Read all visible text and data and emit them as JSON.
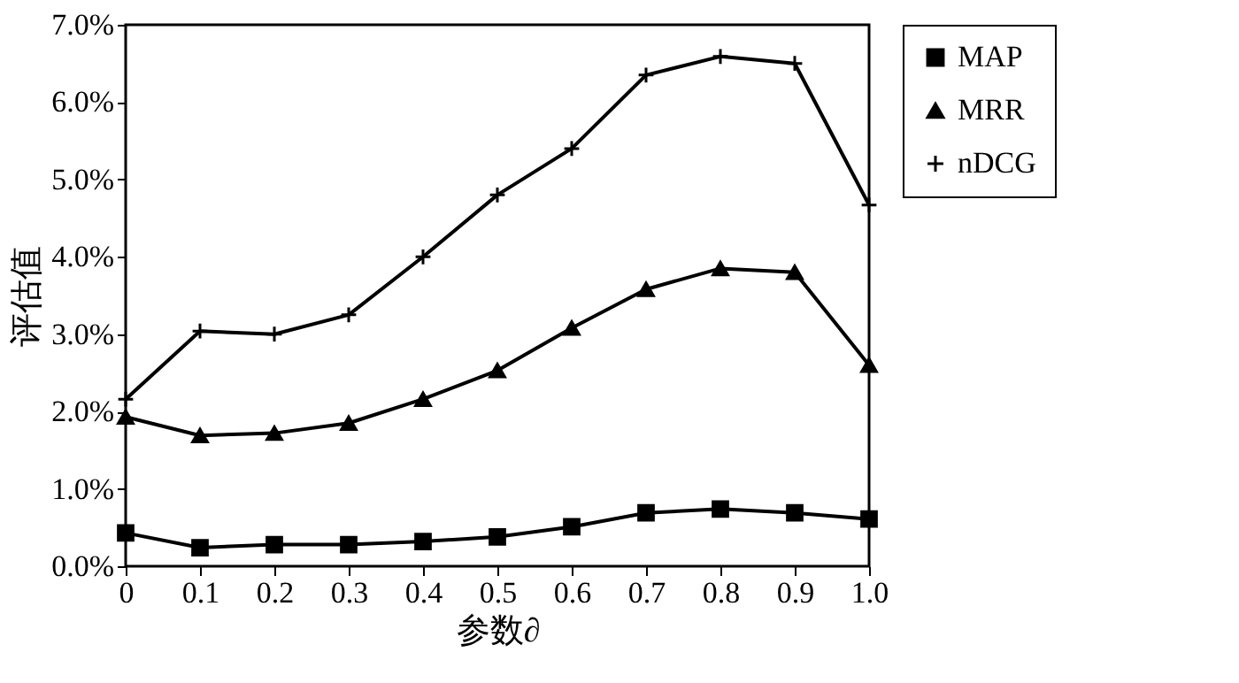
{
  "chart_data": {
    "type": "line",
    "xlabel": "参数∂",
    "ylabel": "评估值",
    "x": [
      0,
      0.1,
      0.2,
      0.3,
      0.4,
      0.5,
      0.6,
      0.7,
      0.8,
      0.9,
      1.0
    ],
    "xlim": [
      0,
      1
    ],
    "xticks": [
      {
        "value": 0,
        "label": "0"
      },
      0.1,
      0.2,
      0.3,
      0.4,
      0.5,
      0.6,
      0.7,
      0.8,
      0.9,
      {
        "value": 1,
        "label": "1.0"
      }
    ],
    "ylim": [
      0,
      7
    ],
    "yticks": [
      {
        "value": 0,
        "label": "0.0%"
      },
      {
        "value": 1,
        "label": "1.0%"
      },
      {
        "value": 2,
        "label": "2.0%"
      },
      {
        "value": 3,
        "label": "3.0%"
      },
      {
        "value": 4,
        "label": "4.0%"
      },
      {
        "value": 5,
        "label": "5.0%"
      },
      {
        "value": 6,
        "label": "6.0%"
      },
      {
        "value": 7,
        "label": "7.0%"
      }
    ],
    "grid": false,
    "legend": "right",
    "line_style": "solid",
    "series": [
      {
        "name": "MAP",
        "color": "#000000",
        "marker": "square",
        "values": [
          0.43,
          0.24,
          0.28,
          0.28,
          0.32,
          0.38,
          0.51,
          0.69,
          0.74,
          0.69,
          0.61
        ]
      },
      {
        "name": "MRR",
        "color": "#000000",
        "marker": "triangle",
        "values": [
          1.93,
          1.69,
          1.72,
          1.85,
          2.16,
          2.53,
          3.08,
          3.58,
          3.85,
          3.8,
          2.6
        ]
      },
      {
        "name": "nDCG",
        "color": "#000000",
        "marker": "cross",
        "values": [
          2.16,
          3.04,
          3.0,
          3.25,
          4.0,
          4.8,
          5.4,
          6.35,
          6.59,
          6.5,
          4.67
        ]
      }
    ]
  }
}
